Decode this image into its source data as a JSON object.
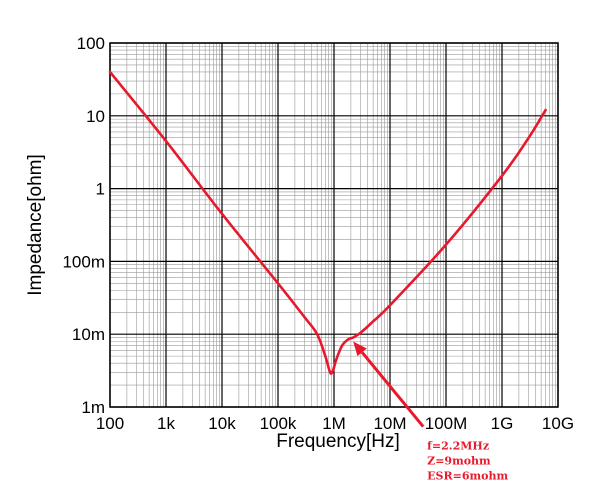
{
  "chart_data": {
    "type": "line",
    "title": "",
    "xlabel": "Frequency[Hz]",
    "ylabel": "Impedance[ohm]",
    "x_scale": "log",
    "y_scale": "log",
    "xlim": [
      100,
      10000000000
    ],
    "ylim": [
      0.001,
      100
    ],
    "grid": true,
    "x_ticks": [
      {
        "value": 100,
        "label": "100"
      },
      {
        "value": 1000,
        "label": "1k"
      },
      {
        "value": 10000,
        "label": "10k"
      },
      {
        "value": 100000,
        "label": "100k"
      },
      {
        "value": 1000000,
        "label": "1M"
      },
      {
        "value": 10000000,
        "label": "10M"
      },
      {
        "value": 100000000,
        "label": "100M"
      },
      {
        "value": 1000000000,
        "label": "1G"
      },
      {
        "value": 10000000000,
        "label": "10G"
      }
    ],
    "y_ticks": [
      {
        "value": 100,
        "label": "100"
      },
      {
        "value": 10,
        "label": "10"
      },
      {
        "value": 1,
        "label": "1"
      },
      {
        "value": 0.1,
        "label": "100m"
      },
      {
        "value": 0.01,
        "label": "10m"
      },
      {
        "value": 0.001,
        "label": "1m"
      }
    ],
    "series": [
      {
        "color": "#e8192c",
        "points": [
          [
            100,
            40
          ],
          [
            1000,
            4.5
          ],
          [
            10000,
            0.45
          ],
          [
            100000,
            0.05
          ],
          [
            300000,
            0.017
          ],
          [
            500000,
            0.01
          ],
          [
            700000,
            0.005
          ],
          [
            850000,
            0.003
          ],
          [
            950000,
            0.0031
          ],
          [
            1100000,
            0.0045
          ],
          [
            1400000,
            0.007
          ],
          [
            1800000,
            0.0085
          ],
          [
            2200000,
            0.009
          ],
          [
            3000000,
            0.0105
          ],
          [
            5000000,
            0.015
          ],
          [
            10000000,
            0.025
          ],
          [
            100000000,
            0.17
          ],
          [
            1000000000,
            1.5
          ],
          [
            3000000000,
            5
          ],
          [
            6000000000,
            12
          ]
        ]
      }
    ],
    "annotations": [
      {
        "x": 2200000,
        "y": 0.009,
        "lines": [
          "f=2.2MHz",
          "Z=9mohm",
          "ESR=6mohm"
        ],
        "color": "#e8192c"
      }
    ]
  }
}
